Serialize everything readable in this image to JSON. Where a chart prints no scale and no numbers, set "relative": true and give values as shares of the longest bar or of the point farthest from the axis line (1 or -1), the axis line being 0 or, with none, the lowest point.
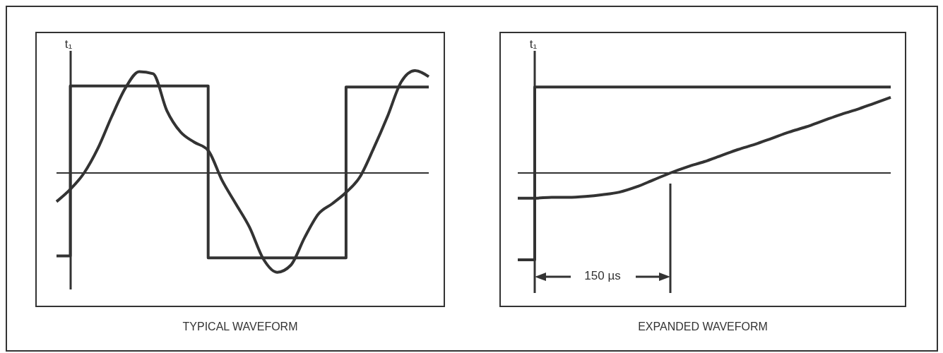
{
  "chart_data": [
    {
      "type": "line",
      "relative": true,
      "marker": "none",
      "xlabel": "TYPICAL WAVEFORM",
      "annotations": [
        "t₁"
      ],
      "categories": [
        null,
        null,
        null,
        null,
        null,
        null,
        null,
        null,
        null,
        null,
        null,
        null,
        null,
        null,
        null,
        null,
        null,
        null,
        null,
        null,
        null,
        null,
        null,
        null,
        null,
        null,
        null,
        null
      ],
      "series": [
        {
          "type": "step",
          "color": "#333333",
          "values": [
            -0.81,
            0.85,
            0.85,
            0.85,
            0.85,
            0.85,
            0.85,
            0.85,
            0.85,
            0.85,
            0.85,
            -0.83,
            -0.83,
            -0.83,
            -0.83,
            -0.83,
            -0.83,
            -0.83,
            -0.83,
            -0.83,
            -0.83,
            0.84,
            0.84,
            0.84,
            0.84,
            0.84,
            0.84,
            0.84
          ]
        },
        {
          "type": "line",
          "color": "#333333",
          "values": [
            -0.28,
            -0.16,
            0,
            0.24,
            0.55,
            0.83,
            0.99,
            0.97,
            0.61,
            0.4,
            0.3,
            0.22,
            -0.07,
            -0.3,
            -0.53,
            -0.84,
            -0.97,
            -0.9,
            -0.63,
            -0.4,
            -0.3,
            -0.19,
            -0.04,
            0.24,
            0.55,
            0.89,
            1,
            0.94
          ]
        }
      ]
    },
    {
      "type": "line",
      "relative": true,
      "marker": "none",
      "xlabel": "EXPANDED WAVEFORM",
      "annotations": [
        "t₁",
        "150 µs"
      ],
      "categories": [
        null,
        null,
        null,
        null,
        null,
        null,
        null,
        null,
        null,
        null,
        null,
        null,
        null,
        null,
        null,
        null,
        null,
        null,
        null,
        null,
        null,
        null,
        null
      ],
      "series": [
        {
          "type": "step",
          "color": "#333333",
          "values": [
            -1,
            0.99,
            0.99,
            0.99,
            0.99,
            0.99,
            0.99,
            0.99,
            0.99,
            0.99,
            0.99,
            0.99,
            0.99,
            0.99,
            0.99,
            0.99,
            0.99,
            0.99,
            0.99,
            0.99,
            0.99,
            0.99,
            0.99
          ]
        },
        {
          "type": "line",
          "color": "#333333",
          "values": [
            -0.29,
            -0.29,
            -0.28,
            -0.28,
            -0.27,
            -0.25,
            -0.22,
            -0.16,
            -0.08,
            0,
            0.07,
            0.13,
            0.2,
            0.27,
            0.33,
            0.4,
            0.47,
            0.53,
            0.6,
            0.67,
            0.73,
            0.8,
            0.87
          ]
        }
      ]
    }
  ]
}
